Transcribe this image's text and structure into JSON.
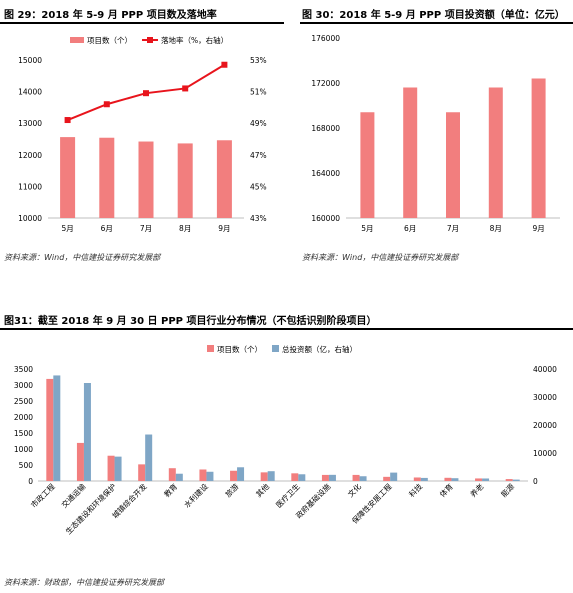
{
  "figure29": {
    "title": "图 29：2018 年 5-9 月 PPP 项目数及落地率",
    "source": "资料来源：Wind，中信建投证券研究发展部"
  },
  "figure30": {
    "title": "图 30：2018 年 5-9 月 PPP 项目投资额（单位：亿元）",
    "source": "资料来源：Wind，中信建投证券研究发展部"
  },
  "figure31": {
    "title": "图31：截至 2018 年 9 月 30 日 PPP 项目行业分布情况（不包括识别阶段项目）",
    "source": "资料来源：财政部，中信建投证券研究发展部"
  },
  "colors": {
    "bar_red": "#f27e7e",
    "line_red": "#e8141c",
    "bar_blue": "#7fa6c6",
    "axis": "#bfbfbf"
  },
  "chart_data": [
    {
      "type": "bar",
      "categories": [
        "5月",
        "6月",
        "7月",
        "8月",
        "9月"
      ],
      "series": [
        {
          "name": "项目数（个）",
          "type": "bar",
          "axis": "left",
          "values": [
            12560,
            12540,
            12420,
            12360,
            12460
          ]
        },
        {
          "name": "落地率（%，右轴）",
          "type": "line",
          "axis": "right",
          "values": [
            49.2,
            50.2,
            50.9,
            51.2,
            52.7
          ]
        }
      ],
      "yleft": {
        "ylim": [
          10000,
          15000
        ],
        "ticks": [
          "10000",
          "11000",
          "12000",
          "13000",
          "14000",
          "15000"
        ]
      },
      "yright": {
        "ylim": [
          43,
          53
        ],
        "ticks": [
          "43%",
          "45%",
          "47%",
          "49%",
          "51%",
          "53%"
        ]
      },
      "legend": "top"
    },
    {
      "type": "bar",
      "categories": [
        "5月",
        "6月",
        "7月",
        "8月",
        "9月"
      ],
      "values": [
        169400,
        171600,
        169400,
        171600,
        172400
      ],
      "ylim": [
        160000,
        176000
      ],
      "yticks": [
        "160000",
        "164000",
        "168000",
        "172000",
        "176000"
      ]
    },
    {
      "type": "bar",
      "categories": [
        "市政工程",
        "交通运输",
        "生态建设和环境保护",
        "城镇综合开发",
        "教育",
        "水利建设",
        "旅游",
        "其他",
        "医疗卫生",
        "政府基础设施",
        "文化",
        "保障性安居工程",
        "科技",
        "体育",
        "养老",
        "能源"
      ],
      "series": [
        {
          "name": "项目数（个）",
          "axis": "left",
          "values": [
            3190,
            1190,
            790,
            520,
            400,
            360,
            320,
            270,
            240,
            190,
            190,
            130,
            110,
            100,
            80,
            60
          ]
        },
        {
          "name": "总投资额（亿，右轴）",
          "axis": "right",
          "values": [
            37700,
            35000,
            8700,
            16600,
            2600,
            3300,
            4900,
            3500,
            2400,
            2200,
            1700,
            3000,
            1100,
            1000,
            900,
            500
          ]
        }
      ],
      "yleft": {
        "ylim": [
          0,
          3500
        ],
        "ticks": [
          "0",
          "500",
          "1000",
          "1500",
          "2000",
          "2500",
          "3000",
          "3500"
        ]
      },
      "yright": {
        "ylim": [
          0,
          40000
        ],
        "ticks": [
          "0",
          "10000",
          "20000",
          "30000",
          "40000"
        ]
      },
      "legend": "top"
    }
  ]
}
